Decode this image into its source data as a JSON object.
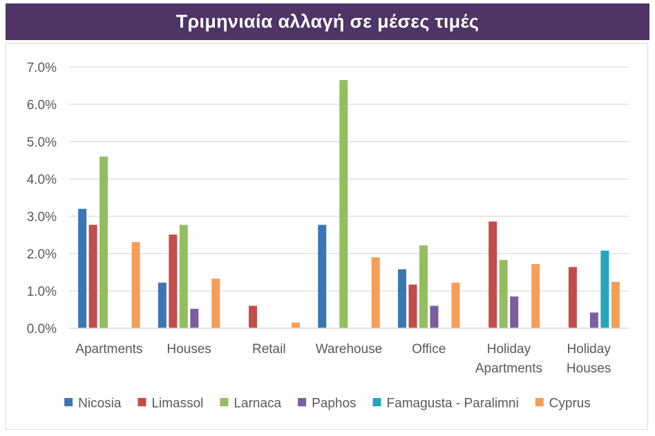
{
  "header": {
    "title": "Τριμηνιαία αλλαγή σε μέσες τιμές"
  },
  "chart_data": {
    "type": "bar",
    "title": "",
    "xlabel": "",
    "ylabel": "",
    "ylim": [
      0,
      0.07
    ],
    "yticks": [
      "0.0%",
      "1.0%",
      "2.0%",
      "3.0%",
      "4.0%",
      "5.0%",
      "6.0%",
      "7.0%"
    ],
    "grid": true,
    "legend_position": "bottom",
    "categories": [
      [
        "Apartments"
      ],
      [
        "Houses"
      ],
      [
        "Retail"
      ],
      [
        "Warehouse"
      ],
      [
        "Office"
      ],
      [
        "Holiday",
        "Apartments"
      ],
      [
        "Holiday",
        "Houses"
      ]
    ],
    "series": [
      {
        "name": "Nicosia",
        "color": "#3a76b1",
        "values": [
          0.032,
          0.0122,
          null,
          0.0277,
          0.0158,
          null,
          null
        ]
      },
      {
        "name": "Limassol",
        "color": "#c44c4a",
        "values": [
          0.0277,
          0.0251,
          0.006,
          null,
          0.0117,
          0.0286,
          0.0164
        ]
      },
      {
        "name": "Larnaca",
        "color": "#93bd5f",
        "values": [
          0.046,
          0.0277,
          null,
          0.0665,
          0.0222,
          0.0183,
          null
        ]
      },
      {
        "name": "Paphos",
        "color": "#7b5da2",
        "values": [
          null,
          0.0052,
          null,
          null,
          0.006,
          0.0085,
          0.0042
        ]
      },
      {
        "name": "Famagusta - Paralimni",
        "color": "#22a7bd",
        "values": [
          null,
          null,
          null,
          null,
          null,
          null,
          0.0208
        ]
      },
      {
        "name": "Cyprus",
        "color": "#f69d56",
        "values": [
          0.0231,
          0.0133,
          0.0015,
          0.019,
          0.0122,
          0.0172,
          0.0124
        ]
      }
    ]
  }
}
